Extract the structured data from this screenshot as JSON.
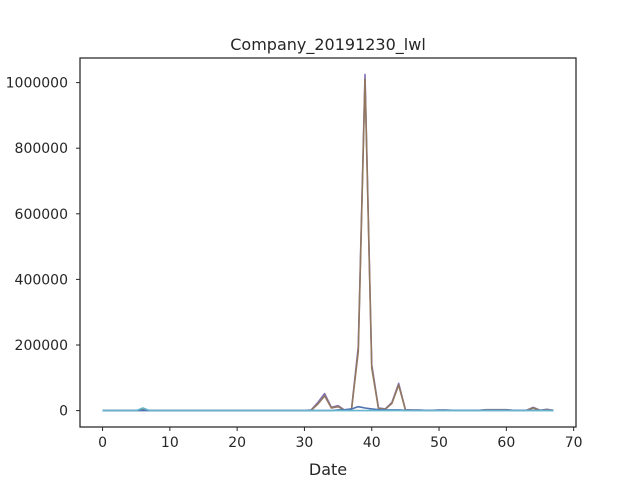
{
  "chart_data": {
    "type": "line",
    "title": "Company_20191230_lwl",
    "xlabel": "Date",
    "ylabel": "",
    "xlim": [
      -3.35,
      70.35
    ],
    "ylim": [
      -50000,
      1075000
    ],
    "xticks": [
      0,
      10,
      20,
      30,
      40,
      50,
      60,
      70
    ],
    "yticks": [
      0,
      200000,
      400000,
      600000,
      800000,
      1000000
    ],
    "grid": false,
    "legend": "none",
    "series": [
      {
        "color": "#8172b2",
        "x": [
          0,
          1,
          2,
          3,
          4,
          5,
          6,
          7,
          8,
          9,
          10,
          11,
          12,
          13,
          14,
          15,
          16,
          17,
          18,
          19,
          20,
          21,
          22,
          23,
          24,
          25,
          26,
          27,
          28,
          29,
          30,
          31,
          32,
          33,
          34,
          35,
          36,
          37,
          38,
          39,
          40,
          41,
          42,
          43,
          44,
          45,
          46,
          47,
          48,
          49,
          50,
          51,
          52,
          53,
          54,
          55,
          56,
          57,
          58,
          59,
          60,
          61,
          62,
          63,
          64,
          65,
          66,
          67
        ],
        "y": [
          0,
          0,
          0,
          0,
          0,
          0,
          5000,
          0,
          0,
          0,
          0,
          0,
          0,
          0,
          0,
          0,
          0,
          0,
          0,
          0,
          0,
          0,
          0,
          0,
          0,
          0,
          0,
          0,
          0,
          0,
          0,
          2000,
          25000,
          52000,
          10000,
          15000,
          1000,
          5000,
          195000,
          1025000,
          140000,
          8000,
          5000,
          25000,
          83000,
          3000,
          2000,
          2000,
          1000,
          1000,
          2000,
          2000,
          1000,
          1000,
          1000,
          1000,
          1000,
          3000,
          3000,
          3000,
          3000,
          1000,
          1000,
          1000,
          10000,
          1000,
          4000,
          1000
        ]
      },
      {
        "color": "#937860",
        "x": [
          0,
          1,
          2,
          3,
          4,
          5,
          6,
          7,
          8,
          9,
          10,
          11,
          12,
          13,
          14,
          15,
          16,
          17,
          18,
          19,
          20,
          21,
          22,
          23,
          24,
          25,
          26,
          27,
          28,
          29,
          30,
          31,
          32,
          33,
          34,
          35,
          36,
          37,
          38,
          39,
          40,
          41,
          42,
          43,
          44,
          45,
          46,
          47,
          48,
          49,
          50,
          51,
          52,
          53,
          54,
          55,
          56,
          57,
          58,
          59,
          60,
          61,
          62,
          63,
          64,
          65,
          66,
          67
        ],
        "y": [
          0,
          0,
          0,
          0,
          0,
          0,
          3000,
          0,
          0,
          0,
          0,
          0,
          0,
          0,
          0,
          0,
          0,
          0,
          0,
          0,
          0,
          0,
          0,
          0,
          0,
          0,
          0,
          0,
          0,
          0,
          0,
          1000,
          20000,
          45000,
          8000,
          12000,
          1000,
          4000,
          180000,
          1010000,
          130000,
          6000,
          4000,
          22000,
          78000,
          2000,
          1000,
          1000,
          1000,
          1000,
          1000,
          1000,
          1000,
          1000,
          1000,
          1000,
          1000,
          2000,
          2000,
          2000,
          2000,
          1000,
          1000,
          1000,
          8000,
          1000,
          3000,
          1000
        ]
      },
      {
        "color": "#4c72b0",
        "x": [
          0,
          1,
          2,
          3,
          4,
          5,
          6,
          7,
          8,
          9,
          10,
          11,
          12,
          13,
          14,
          15,
          16,
          17,
          18,
          19,
          20,
          21,
          22,
          23,
          24,
          25,
          26,
          27,
          28,
          29,
          30,
          31,
          32,
          33,
          34,
          35,
          36,
          37,
          38,
          39,
          40,
          41,
          42,
          43,
          44,
          45,
          46,
          47,
          48,
          49,
          50,
          51,
          52,
          53,
          54,
          55,
          56,
          57,
          58,
          59,
          60,
          61,
          62,
          63,
          64,
          65,
          66,
          67
        ],
        "y": [
          0,
          0,
          0,
          0,
          0,
          0,
          0,
          0,
          0,
          0,
          0,
          0,
          0,
          0,
          0,
          0,
          0,
          0,
          0,
          0,
          0,
          0,
          0,
          0,
          0,
          0,
          0,
          0,
          0,
          0,
          0,
          0,
          0,
          0,
          0,
          2000,
          3000,
          5000,
          12000,
          8000,
          5000,
          3000,
          2000,
          2000,
          2000,
          1000,
          1000,
          1000,
          1000,
          1000,
          1000,
          1000,
          1000,
          1000,
          1000,
          1000,
          1000,
          1000,
          1000,
          1000,
          1000,
          1000,
          1000,
          1000,
          1000,
          1000,
          1000,
          0
        ]
      },
      {
        "color": "#64b5cd",
        "x": [
          0,
          1,
          2,
          3,
          4,
          5,
          6,
          7,
          8,
          9,
          10,
          11,
          12,
          13,
          14,
          15,
          16,
          17,
          18,
          19,
          20,
          21,
          22,
          23,
          24,
          25,
          26,
          27,
          28,
          29,
          30,
          31,
          32,
          33,
          34,
          35,
          36,
          37,
          38,
          39,
          40,
          41,
          42,
          43,
          44,
          45,
          46,
          47,
          48,
          49,
          50,
          51,
          52,
          53,
          54,
          55,
          56,
          57,
          58,
          59,
          60,
          61,
          62,
          63,
          64,
          65,
          66,
          67
        ],
        "y": [
          0,
          0,
          0,
          0,
          0,
          0,
          8000,
          0,
          0,
          0,
          0,
          0,
          0,
          0,
          0,
          0,
          0,
          0,
          0,
          0,
          0,
          0,
          0,
          0,
          0,
          0,
          0,
          0,
          0,
          0,
          0,
          0,
          0,
          0,
          0,
          0,
          0,
          0,
          0,
          0,
          0,
          0,
          0,
          0,
          0,
          0,
          0,
          0,
          0,
          0,
          0,
          0,
          0,
          0,
          0,
          0,
          0,
          0,
          0,
          0,
          0,
          0,
          0,
          0,
          0,
          0,
          0,
          0
        ]
      }
    ]
  }
}
